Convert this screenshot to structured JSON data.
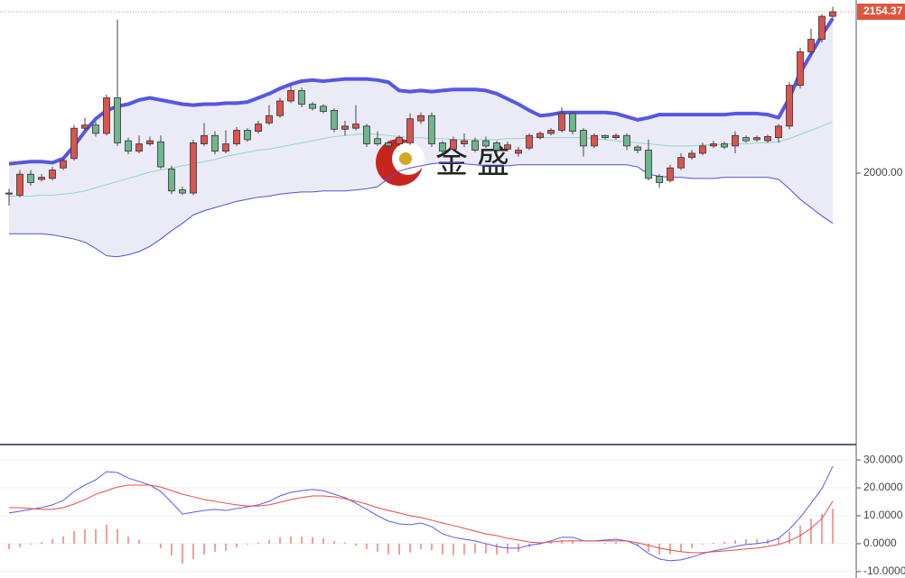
{
  "chart_data": [
    {
      "type": "candlestick",
      "watermark": "金盛",
      "open": [
        1980,
        1979,
        1999,
        1994,
        1995,
        2005,
        2014,
        2043,
        2046,
        2038,
        2072,
        2031,
        2021,
        2028,
        2030,
        2004,
        1984,
        1981,
        2028,
        2036,
        2021,
        2028,
        2041,
        2040,
        2048,
        2055,
        2069,
        2079,
        2066,
        2064,
        2060,
        2042,
        2043,
        2045,
        2033,
        2029,
        2028,
        2029,
        2050,
        2055,
        2029,
        2023,
        2028,
        2031,
        2031,
        2029,
        2023,
        2019,
        2024,
        2034,
        2038,
        2041,
        2057,
        2041,
        2026,
        2036,
        2034,
        2036,
        2025,
        2022,
        1997,
        1993,
        2005,
        2015,
        2019,
        2026,
        2028,
        2026,
        2034,
        2032,
        2031,
        2034,
        2045,
        2084,
        2116,
        2128,
        2150
      ],
      "high": [
        1985,
        2003,
        2003,
        1999,
        2006,
        2015,
        2046,
        2053,
        2049,
        2075,
        2147,
        2034,
        2036,
        2035,
        2036,
        2007,
        1987,
        2032,
        2048,
        2040,
        2041,
        2044,
        2043,
        2050,
        2065,
        2072,
        2084,
        2082,
        2068,
        2066,
        2062,
        2050,
        2065,
        2047,
        2040,
        2031,
        2036,
        2057,
        2058,
        2058,
        2031,
        2035,
        2038,
        2034,
        2035,
        2031,
        2030,
        2025,
        2038,
        2040,
        2043,
        2063,
        2059,
        2043,
        2038,
        2037,
        2038,
        2038,
        2027,
        2032,
        1999,
        2008,
        2019,
        2022,
        2029,
        2031,
        2030,
        2040,
        2036,
        2036,
        2037,
        2047,
        2087,
        2120,
        2138,
        2152,
        2159
      ],
      "low": [
        1969,
        1977,
        1988,
        1992,
        1993,
        2003,
        2012,
        2041,
        2035,
        2036,
        2026,
        2018,
        2019,
        2026,
        2004,
        1980,
        1979,
        1979,
        2026,
        2018,
        2019,
        2026,
        2030,
        2038,
        2046,
        2053,
        2067,
        2063,
        2060,
        2057,
        2039,
        2036,
        2041,
        2025,
        2026,
        2022,
        2026,
        2027,
        2047,
        2025,
        2018,
        2021,
        2025,
        2020,
        2024,
        2019,
        2021,
        2016,
        2022,
        2032,
        2036,
        2039,
        2037,
        2016,
        2024,
        2032,
        2032,
        2022,
        2019,
        1993,
        1986,
        1991,
        2003,
        2013,
        2017,
        2024,
        2023,
        2019,
        2029,
        2030,
        2029,
        2029,
        2042,
        2081,
        2113,
        2125,
        2148
      ],
      "close": [
        1981,
        1999,
        1991,
        1996,
        2003,
        2012,
        2043,
        2046,
        2038,
        2072,
        2029,
        2021,
        2028,
        2031,
        2006,
        1983,
        1981,
        2029,
        2036,
        2021,
        2028,
        2041,
        2032,
        2047,
        2055,
        2069,
        2079,
        2066,
        2062,
        2059,
        2042,
        2045,
        2047,
        2028,
        2028,
        2026,
        2034,
        2052,
        2055,
        2028,
        2021,
        2032,
        2031,
        2022,
        2026,
        2022,
        2027,
        2022,
        2036,
        2038,
        2041,
        2057,
        2040,
        2026,
        2036,
        2034,
        2036,
        2026,
        2022,
        1995,
        1991,
        2005,
        2015,
        2019,
        2026,
        2028,
        2025,
        2036,
        2031,
        2034,
        2035,
        2045,
        2084,
        2116,
        2128,
        2150,
        2154.37
      ],
      "up_color": "#d9534f",
      "down_color": "#6fb58e",
      "band_fill": "#e4e4f4",
      "bands": [
        {
          "color": "#5656e6",
          "width": 4,
          "values": [
            2009,
            2010,
            2011,
            2011,
            2010,
            2014,
            2026,
            2040,
            2052,
            2060,
            2064,
            2066,
            2070,
            2072,
            2070,
            2068,
            2066,
            2065,
            2066,
            2066,
            2067,
            2067,
            2068,
            2072,
            2076,
            2081,
            2085,
            2088,
            2089,
            2088,
            2089,
            2090,
            2090,
            2090,
            2089,
            2087,
            2079,
            2078,
            2079,
            2078,
            2079,
            2080,
            2080,
            2080,
            2079,
            2076,
            2071,
            2066,
            2060,
            2055,
            2056,
            2058,
            2058,
            2058,
            2058,
            2058,
            2057,
            2054,
            2051,
            2053,
            2056,
            2056,
            2056,
            2056,
            2056,
            2056,
            2056,
            2057,
            2057,
            2057,
            2056,
            2053,
            2072,
            2096,
            2114,
            2132,
            2148
          ]
        },
        {
          "color": "#8ed8c4",
          "width": 1,
          "values": [
            1978,
            1978,
            1978,
            1979,
            1979,
            1980,
            1981,
            1983,
            1986,
            1989,
            1992,
            1995,
            1998,
            2001,
            2003,
            2005,
            2007,
            2009,
            2011,
            2013,
            2016,
            2018,
            2020,
            2022,
            2023,
            2025,
            2027,
            2029,
            2031,
            2033,
            2035,
            2036,
            2037,
            2038,
            2037,
            2036,
            2035,
            2034,
            2034,
            2033,
            2033,
            2032,
            2032,
            2032,
            2032,
            2032,
            2033,
            2033,
            2034,
            2034,
            2034,
            2034,
            2034,
            2034,
            2033,
            2032,
            2031,
            2030,
            2029,
            2028,
            2027,
            2026,
            2026,
            2026,
            2027,
            2027,
            2028,
            2028,
            2028,
            2029,
            2029,
            2030,
            2033,
            2037,
            2041,
            2045,
            2049
          ]
        },
        {
          "color": "#5050dc",
          "width": 1,
          "values": [
            1942,
            1942,
            1942,
            1942,
            1941,
            1939,
            1937,
            1934,
            1928,
            1921,
            1920,
            1922,
            1925,
            1930,
            1937,
            1945,
            1952,
            1960,
            1964,
            1967,
            1970,
            1973,
            1975,
            1977,
            1978,
            1980,
            1981,
            1982,
            1982,
            1983,
            1983,
            1983,
            1984,
            1985,
            1987,
            1995,
            2002,
            2005,
            2007,
            2009,
            2010,
            2010,
            2009,
            2008,
            2007,
            2007,
            2007,
            2008,
            2008,
            2008,
            2008,
            2008,
            2008,
            2008,
            2008,
            2008,
            2008,
            2008,
            2006,
            1999,
            1997,
            1996,
            1996,
            1995,
            1995,
            1995,
            1996,
            1996,
            1996,
            1996,
            1996,
            1994,
            1985,
            1975,
            1967,
            1959,
            1952
          ]
        }
      ],
      "ylim": [
        1741.3,
        2165.6
      ],
      "yticks": [
        {
          "value": 2000,
          "label": "2000.00"
        }
      ],
      "last_price": 2154.37,
      "last_price_color": "#e0553f"
    },
    {
      "type": "line",
      "ylim": [
        -12.3,
        35.2
      ],
      "yticks": [
        {
          "value": 30,
          "label": "30.0000"
        },
        {
          "value": 20,
          "label": "20.0000"
        },
        {
          "value": 10,
          "label": "10.0000"
        },
        {
          "value": 0,
          "label": "0.0000"
        },
        {
          "value": -10,
          "label": "-10.0000"
        }
      ],
      "grid": true,
      "series": [
        {
          "style": "bar",
          "color": "#e8625a",
          "values": [
            -1.9,
            -1.3,
            -0.3,
            0.6,
            1.6,
            2.6,
            4.5,
            5.2,
            5.2,
            6.8,
            5.2,
            2.5,
            1.3,
            0,
            -1.6,
            -4.2,
            -7.1,
            -5.5,
            -3.9,
            -2.9,
            -2.6,
            -1.3,
            -0.3,
            0.4,
            1.3,
            2.3,
            2.6,
            2.5,
            2.3,
            1.9,
            0.9,
            0.4,
            -0.7,
            -1.9,
            -2.9,
            -3.8,
            -3.9,
            -3.2,
            -2.0,
            -2.3,
            -3.9,
            -4.2,
            -3.9,
            -3.5,
            -3.5,
            -3.9,
            -3.5,
            -2.9,
            -1.2,
            -0.3,
            0.4,
            1.3,
            1.3,
            0,
            0,
            0.3,
            0.6,
            0,
            -0.9,
            -2.9,
            -3.9,
            -3.8,
            -2.9,
            -1.6,
            -0.3,
            0.3,
            0.7,
            1.3,
            1.6,
            1.6,
            1.6,
            2.2,
            4.2,
            6.5,
            9.0,
            10.7,
            12.5
          ]
        },
        {
          "style": "line",
          "color": "#5b5bf0",
          "values": [
            11.0,
            11.6,
            12.3,
            12.9,
            13.9,
            15.5,
            18.7,
            21.0,
            22.9,
            25.8,
            25.5,
            23.5,
            22.3,
            21.0,
            18.7,
            14.8,
            10.6,
            11.3,
            11.9,
            12.3,
            11.9,
            12.6,
            13.2,
            13.9,
            15.2,
            17.1,
            18.4,
            19.0,
            19.4,
            19.0,
            17.7,
            16.5,
            14.5,
            12.3,
            10.0,
            8.1,
            7.1,
            6.8,
            7.4,
            6.1,
            3.5,
            2.3,
            1.6,
            1.0,
            0,
            -1.0,
            -1.6,
            -1.6,
            -0.6,
            0,
            1.0,
            2.3,
            2.3,
            1.0,
            1.0,
            1.3,
            1.6,
            1.0,
            -0.6,
            -3.5,
            -5.5,
            -6.1,
            -5.8,
            -4.8,
            -3.5,
            -2.6,
            -1.9,
            -1.0,
            -0.3,
            0,
            0.6,
            1.9,
            5.2,
            9.4,
            14.5,
            19.7,
            27.7
          ]
        },
        {
          "style": "line",
          "color": "#e84a4a",
          "values": [
            12.9,
            12.9,
            12.6,
            12.3,
            12.3,
            12.9,
            14.2,
            15.8,
            17.7,
            19.0,
            20.3,
            21.0,
            21.0,
            21.0,
            20.3,
            19.0,
            17.7,
            16.8,
            15.8,
            15.2,
            14.5,
            13.9,
            13.5,
            13.5,
            13.9,
            14.8,
            15.8,
            16.5,
            17.1,
            17.1,
            16.8,
            16.1,
            15.2,
            14.2,
            12.9,
            11.9,
            11.0,
            10.0,
            9.4,
            8.4,
            7.4,
            6.5,
            5.5,
            4.5,
            3.5,
            2.9,
            1.9,
            1.3,
            0.6,
            0.3,
            0.6,
            1.0,
            1.0,
            1.0,
            1.0,
            1.0,
            1.0,
            1.0,
            0.3,
            -0.6,
            -1.6,
            -2.3,
            -2.9,
            -3.2,
            -3.2,
            -2.9,
            -2.6,
            -2.3,
            -1.9,
            -1.6,
            -1.0,
            -0.3,
            1.0,
            2.9,
            5.5,
            9.0,
            15.2
          ]
        }
      ]
    }
  ]
}
